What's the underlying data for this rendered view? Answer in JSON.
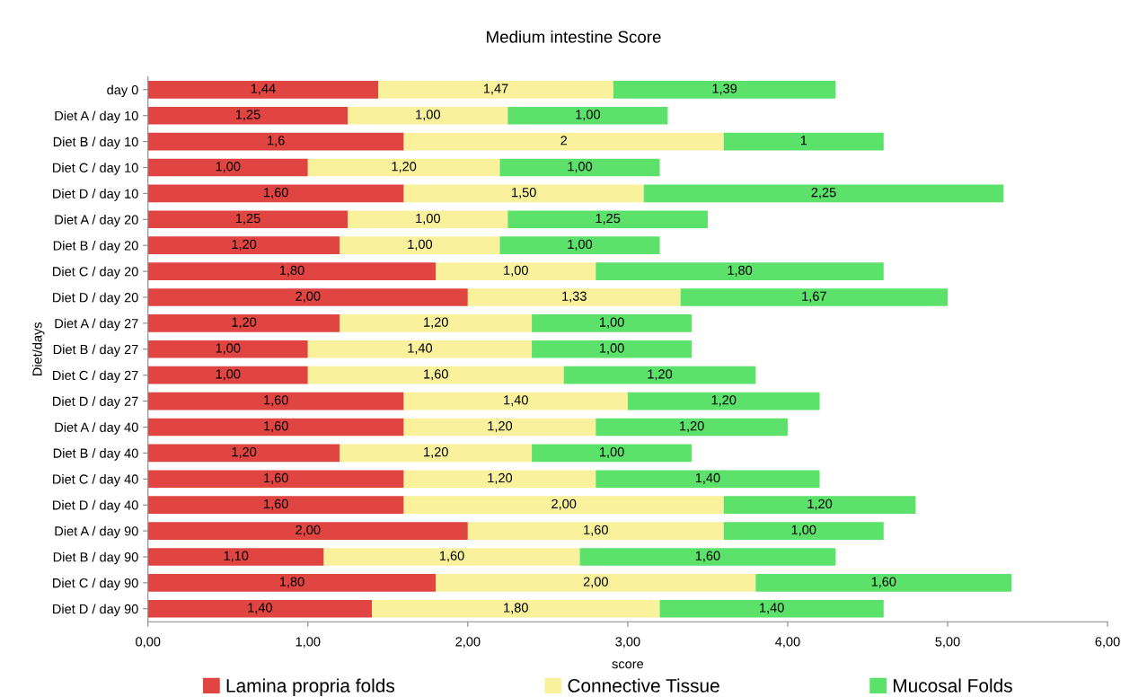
{
  "chart_data": {
    "type": "bar",
    "orientation": "horizontal",
    "stacked": true,
    "title": "Medium intestine Score",
    "xlabel": "score",
    "ylabel": "Diet/days",
    "categories": [
      "day 0",
      "Diet A / day 10",
      "Diet B / day 10",
      "Diet C / day 10",
      "Diet D / day 10",
      "Diet A / day 20",
      "Diet B / day 20",
      "Diet C / day 20",
      "Diet D / day 20",
      "Diet A / day 27",
      "Diet B / day 27",
      "Diet C / day 27",
      "Diet D / day 27",
      "Diet A / day 40",
      "Diet B / day 40",
      "Diet C / day 40",
      "Diet D / day 40",
      "Diet A / day 90",
      "Diet B / day 90",
      "Diet C / day 90",
      "Diet D / day 90"
    ],
    "series": [
      {
        "name": "Lamina propria folds",
        "color": "#e04541",
        "values": [
          1.44,
          1.25,
          1.6,
          1.0,
          1.6,
          1.25,
          1.2,
          1.8,
          2.0,
          1.2,
          1.0,
          1.0,
          1.6,
          1.6,
          1.2,
          1.6,
          1.6,
          2.0,
          1.1,
          1.8,
          1.4
        ],
        "value_labels": [
          "1,44",
          "1,25",
          "1,6",
          "1,00",
          "1,60",
          "1,25",
          "1,20",
          "1,80",
          "2,00",
          "1,20",
          "1,00",
          "1,00",
          "1,60",
          "1,60",
          "1,20",
          "1,60",
          "1,60",
          "2,00",
          "1,10",
          "1,80",
          "1,40"
        ]
      },
      {
        "name": "Connective Tissue",
        "color": "#faf19c",
        "values": [
          1.47,
          1.0,
          2,
          1.2,
          1.5,
          1.0,
          1.0,
          1.0,
          1.33,
          1.2,
          1.4,
          1.6,
          1.4,
          1.2,
          1.2,
          1.2,
          2.0,
          1.6,
          1.6,
          2.0,
          1.8
        ],
        "value_labels": [
          "1,47",
          "1,00",
          "2",
          "1,20",
          "1,50",
          "1,00",
          "1,00",
          "1,00",
          "1,33",
          "1,20",
          "1,40",
          "1,60",
          "1,40",
          "1,20",
          "1,20",
          "1,20",
          "2,00",
          "1,60",
          "1,60",
          "2,00",
          "1,80"
        ]
      },
      {
        "name": "Mucosal Folds",
        "color": "#5ce16a",
        "values": [
          1.39,
          1.0,
          1,
          1.0,
          2.25,
          1.25,
          1.0,
          1.8,
          1.67,
          1.0,
          1.0,
          1.2,
          1.2,
          1.2,
          1.0,
          1.4,
          1.2,
          1.0,
          1.6,
          1.6,
          1.4
        ],
        "value_labels": [
          "1,39",
          "1,00",
          "1",
          "1,00",
          "2,25",
          "1,25",
          "1,00",
          "1,80",
          "1,67",
          "1,00",
          "1,00",
          "1,20",
          "1,20",
          "1,20",
          "1,00",
          "1,40",
          "1,20",
          "1,00",
          "1,60",
          "1,60",
          "1,40"
        ]
      }
    ],
    "xlim": [
      0,
      6
    ],
    "xticks": [
      {
        "value": 0,
        "label": "0,00"
      },
      {
        "value": 1,
        "label": "1,00"
      },
      {
        "value": 2,
        "label": "2,00"
      },
      {
        "value": 3,
        "label": "3,00"
      },
      {
        "value": 4,
        "label": "4,00"
      },
      {
        "value": 5,
        "label": "5,00"
      },
      {
        "value": 6,
        "label": "6,00"
      }
    ],
    "grid": false,
    "legend": "bottom"
  }
}
